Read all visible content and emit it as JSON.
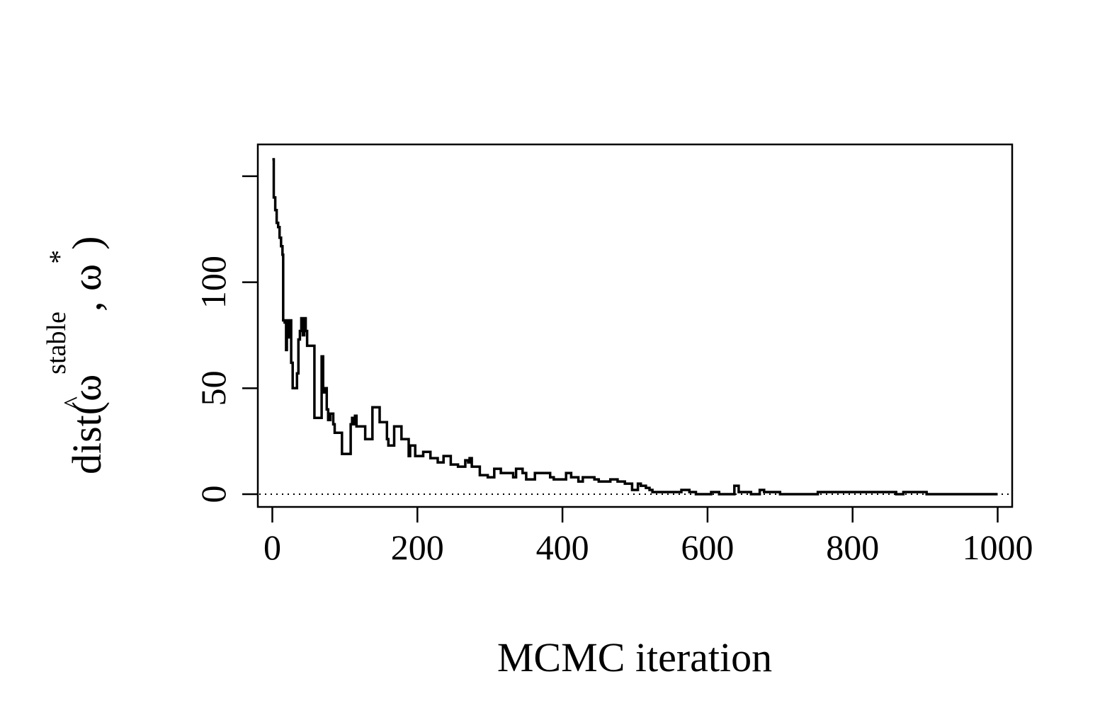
{
  "chart_data": {
    "type": "line",
    "title": "",
    "xlabel": "MCMC iteration",
    "ylabel": {
      "prefix": "dist(",
      "hat": "^",
      "omega": "ω",
      "superscript": "stable",
      "separator": ", ",
      "omega2": "ω",
      "star": "*",
      "suffix": ")"
    },
    "xlim": [
      -20,
      1020
    ],
    "ylim": [
      -6,
      165
    ],
    "xticks": [
      0,
      200,
      400,
      600,
      800,
      1000
    ],
    "xtick_labels": [
      "0",
      "200",
      "400",
      "600",
      "800",
      "1000"
    ],
    "yticks": [
      0,
      50,
      100,
      150
    ],
    "ytick_labels": [
      "0",
      "50",
      "100",
      ""
    ],
    "grid": false,
    "legend": "none",
    "reference_line": {
      "y": 0,
      "style": "dotted"
    },
    "series": [
      {
        "style": "step",
        "color": "#000000",
        "points": [
          [
            0,
            158
          ],
          [
            2,
            140
          ],
          [
            4,
            134
          ],
          [
            6,
            128
          ],
          [
            8,
            126
          ],
          [
            10,
            121
          ],
          [
            12,
            117
          ],
          [
            14,
            113
          ],
          [
            15,
            82
          ],
          [
            17,
            81
          ],
          [
            19,
            68
          ],
          [
            20,
            82
          ],
          [
            22,
            74
          ],
          [
            24,
            82
          ],
          [
            26,
            62
          ],
          [
            28,
            50
          ],
          [
            32,
            50
          ],
          [
            34,
            57
          ],
          [
            36,
            73
          ],
          [
            38,
            77
          ],
          [
            40,
            83
          ],
          [
            42,
            75
          ],
          [
            44,
            83
          ],
          [
            46,
            77
          ],
          [
            48,
            70
          ],
          [
            56,
            70
          ],
          [
            58,
            36
          ],
          [
            66,
            36
          ],
          [
            68,
            65
          ],
          [
            70,
            48
          ],
          [
            72,
            50
          ],
          [
            75,
            40
          ],
          [
            77,
            35
          ],
          [
            80,
            38
          ],
          [
            84,
            33
          ],
          [
            86,
            29
          ],
          [
            94,
            29
          ],
          [
            96,
            19
          ],
          [
            106,
            19
          ],
          [
            108,
            33
          ],
          [
            110,
            36
          ],
          [
            112,
            33
          ],
          [
            114,
            37
          ],
          [
            116,
            32
          ],
          [
            126,
            32
          ],
          [
            128,
            26
          ],
          [
            136,
            26
          ],
          [
            138,
            41
          ],
          [
            146,
            41
          ],
          [
            148,
            34
          ],
          [
            156,
            34
          ],
          [
            158,
            26
          ],
          [
            160,
            23
          ],
          [
            166,
            23
          ],
          [
            168,
            32
          ],
          [
            176,
            32
          ],
          [
            178,
            26
          ],
          [
            186,
            26
          ],
          [
            188,
            18
          ],
          [
            190,
            23
          ],
          [
            195,
            23
          ],
          [
            197,
            18
          ],
          [
            206,
            18
          ],
          [
            208,
            20
          ],
          [
            216,
            20
          ],
          [
            218,
            17
          ],
          [
            226,
            17
          ],
          [
            228,
            15
          ],
          [
            234,
            15
          ],
          [
            236,
            18
          ],
          [
            244,
            18
          ],
          [
            246,
            14
          ],
          [
            254,
            14
          ],
          [
            256,
            13
          ],
          [
            264,
            13
          ],
          [
            266,
            16
          ],
          [
            270,
            15
          ],
          [
            272,
            17
          ],
          [
            275,
            13
          ],
          [
            284,
            13
          ],
          [
            286,
            9
          ],
          [
            295,
            9
          ],
          [
            297,
            8
          ],
          [
            304,
            8
          ],
          [
            306,
            12
          ],
          [
            313,
            12
          ],
          [
            315,
            10
          ],
          [
            330,
            10
          ],
          [
            332,
            8
          ],
          [
            336,
            12
          ],
          [
            343,
            12
          ],
          [
            345,
            10
          ],
          [
            350,
            7
          ],
          [
            360,
            7
          ],
          [
            362,
            10
          ],
          [
            381,
            10
          ],
          [
            383,
            8
          ],
          [
            386,
            8
          ],
          [
            388,
            7
          ],
          [
            403,
            7
          ],
          [
            405,
            10
          ],
          [
            410,
            10
          ],
          [
            412,
            8
          ],
          [
            420,
            8
          ],
          [
            422,
            6
          ],
          [
            426,
            6
          ],
          [
            428,
            8
          ],
          [
            442,
            8
          ],
          [
            444,
            7
          ],
          [
            448,
            7
          ],
          [
            450,
            6
          ],
          [
            464,
            6
          ],
          [
            466,
            7
          ],
          [
            474,
            7
          ],
          [
            476,
            6
          ],
          [
            484,
            6
          ],
          [
            486,
            5
          ],
          [
            494,
            5
          ],
          [
            496,
            2
          ],
          [
            502,
            2
          ],
          [
            504,
            5
          ],
          [
            508,
            4
          ],
          [
            512,
            4
          ],
          [
            515,
            3
          ],
          [
            520,
            2
          ],
          [
            524,
            1
          ],
          [
            562,
            1
          ],
          [
            564,
            2
          ],
          [
            573,
            2
          ],
          [
            575,
            1
          ],
          [
            582,
            1
          ],
          [
            584,
            0
          ],
          [
            603,
            0
          ],
          [
            605,
            1
          ],
          [
            614,
            1
          ],
          [
            616,
            0
          ],
          [
            635,
            0
          ],
          [
            637,
            4
          ],
          [
            641,
            4
          ],
          [
            643,
            1
          ],
          [
            658,
            1
          ],
          [
            660,
            0
          ],
          [
            670,
            0
          ],
          [
            672,
            2
          ],
          [
            676,
            2
          ],
          [
            678,
            1
          ],
          [
            698,
            1
          ],
          [
            700,
            0
          ],
          [
            750,
            0
          ],
          [
            752,
            1
          ],
          [
            858,
            1
          ],
          [
            860,
            0
          ],
          [
            868,
            0
          ],
          [
            870,
            1
          ],
          [
            900,
            1
          ],
          [
            902,
            0
          ],
          [
            1000,
            0
          ]
        ]
      }
    ]
  }
}
